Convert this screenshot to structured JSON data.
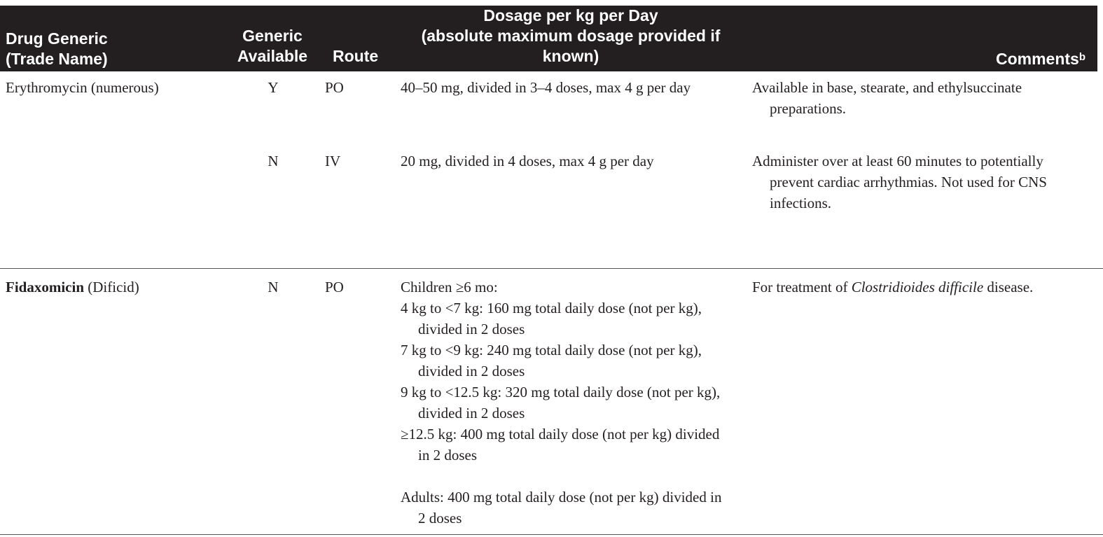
{
  "header": {
    "drug_line1": "Drug Generic",
    "drug_line2": "(Trade Name)",
    "generic_line1": "Generic",
    "generic_line2": "Available",
    "route": "Route",
    "dosage_line1": "Dosage per kg per Day",
    "dosage_line2": "(absolute maximum dosage provided if",
    "dosage_line3": "known)",
    "comments": "Comments",
    "comments_sup": "b"
  },
  "rows": [
    {
      "drug": "Erythromycin",
      "trade": " (numerous)",
      "generic": "Y",
      "route": "PO",
      "dosage": "40–50 mg, divided in 3–4 doses, max 4 g per day",
      "comment": "Available in base, stearate, and ethylsuccinate preparations."
    },
    {
      "generic": "N",
      "route": "IV",
      "dosage": "20 mg, divided in 4 doses, max 4 g per day",
      "comment": "Administer over at least 60 minutes to potentially prevent cardiac arrhythmias. Not used for CNS infections."
    },
    {
      "drug": "Fidaxomicin",
      "trade": " (Dificid)",
      "generic": "N",
      "route": "PO",
      "dosage_lines": [
        "Children ≥6 mo:",
        "4 kg to <7 kg: 160 mg total daily dose (not per kg), divided in 2 doses",
        "7 kg to <9 kg: 240 mg total daily dose (not per kg), divided in 2 doses",
        "9 kg to <12.5 kg: 320 mg total daily dose (not per kg), divided in 2 doses",
        "≥12.5 kg: 400 mg total daily dose (not per kg) divided in 2 doses",
        "Adults: 400 mg total daily dose (not per kg) divided in 2 doses"
      ],
      "comment_pre": "For treatment of ",
      "comment_italic": "Clostridioides difficile",
      "comment_post": " disease."
    }
  ]
}
